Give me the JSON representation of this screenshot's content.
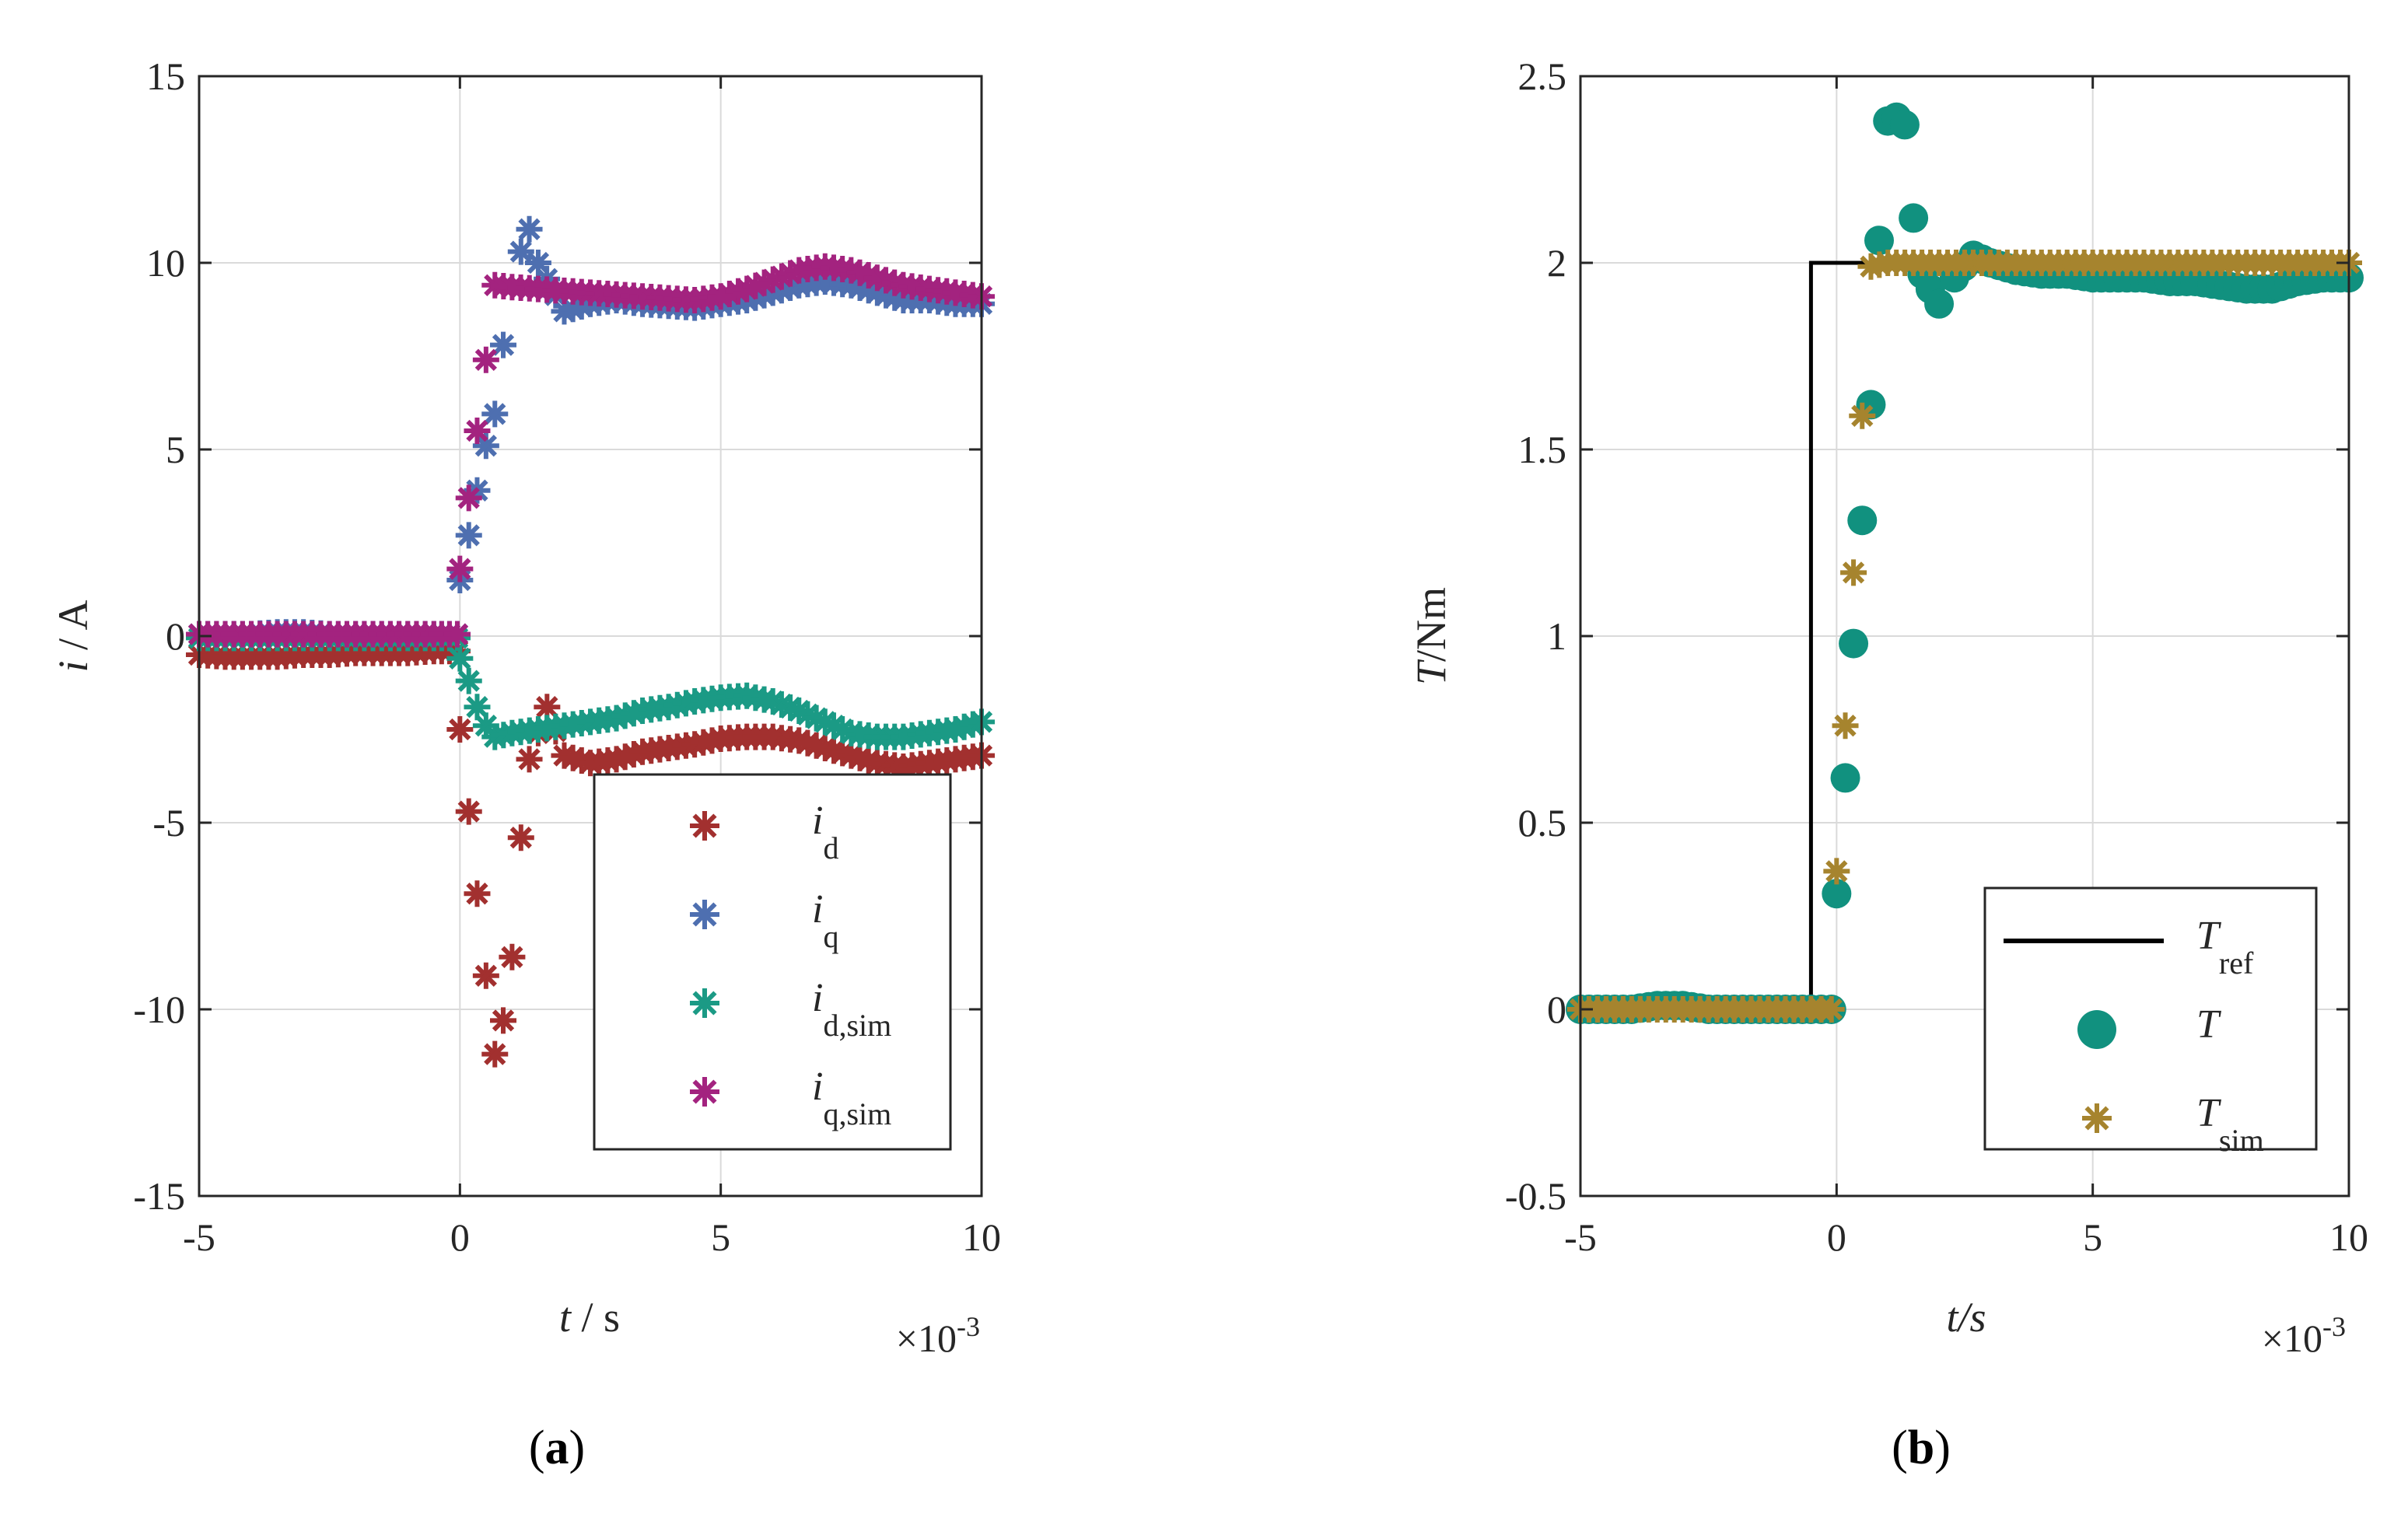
{
  "figure": {
    "caption_a": {
      "open": "(",
      "letter": "a",
      "close": ")"
    },
    "caption_b": {
      "open": "(",
      "letter": "b",
      "close": ")"
    }
  },
  "chart_data": [
    {
      "id": "a",
      "type": "scatter",
      "xlim": [
        -0.005,
        0.01
      ],
      "ylim": [
        -15,
        15
      ],
      "xticks": [
        -5,
        0,
        5,
        10
      ],
      "xtick_labels": [
        "-5",
        "0",
        "5",
        "10"
      ],
      "yticks": [
        15,
        10,
        5,
        0,
        -5,
        -10,
        -15
      ],
      "ytick_labels": [
        "15",
        "10",
        "5",
        "0",
        "-5",
        "-10",
        "-15"
      ],
      "x_exponent": {
        "base": "×10",
        "exp": "-3"
      },
      "xlabel": {
        "var": "t",
        "rest": " / s"
      },
      "ylabel": {
        "var": "i",
        "rest": " / A"
      },
      "grid": true,
      "legend_position": "bottom-right",
      "series": [
        {
          "name": "i_d",
          "legend_main": "i",
          "legend_sub": "d",
          "marker": "asterisk",
          "color": "#A2302F",
          "points": [
            [
              -5,
              -0.5
            ],
            [
              -4.5,
              -0.55
            ],
            [
              -4,
              -0.55
            ],
            [
              -3.5,
              -0.55
            ],
            [
              -3,
              -0.5
            ],
            [
              -2.5,
              -0.5
            ],
            [
              -2,
              -0.45
            ],
            [
              -1.5,
              -0.45
            ],
            [
              -1,
              -0.45
            ],
            [
              -0.5,
              -0.4
            ],
            [
              -0.05,
              -0.4
            ],
            [
              0,
              -2.5
            ],
            [
              0.17,
              -4.7
            ],
            [
              0.33,
              -6.9
            ],
            [
              0.5,
              -9.1
            ],
            [
              0.67,
              -11.2
            ],
            [
              0.83,
              -10.3
            ],
            [
              1.0,
              -8.6
            ],
            [
              1.17,
              -5.4
            ],
            [
              1.33,
              -3.3
            ],
            [
              1.67,
              -1.9
            ],
            [
              2.0,
              -3.2
            ],
            [
              2.5,
              -3.4
            ],
            [
              3,
              -3.3
            ],
            [
              3.5,
              -3.1
            ],
            [
              4,
              -3.0
            ],
            [
              4.5,
              -2.9
            ],
            [
              5,
              -2.75
            ],
            [
              5.5,
              -2.7
            ],
            [
              6,
              -2.7
            ],
            [
              6.5,
              -2.8
            ],
            [
              7,
              -3.0
            ],
            [
              7.5,
              -3.2
            ],
            [
              8,
              -3.4
            ],
            [
              8.5,
              -3.5
            ],
            [
              9,
              -3.4
            ],
            [
              9.5,
              -3.3
            ],
            [
              10,
              -3.2
            ]
          ]
        },
        {
          "name": "i_q",
          "legend_main": "i",
          "legend_sub": "q",
          "marker": "asterisk",
          "color": "#4E6FB0",
          "points": [
            [
              -5,
              0.05
            ],
            [
              -4.5,
              0.05
            ],
            [
              -4,
              0.05
            ],
            [
              -3.5,
              0.1
            ],
            [
              -3,
              0.1
            ],
            [
              -2.5,
              0.05
            ],
            [
              -2,
              0.05
            ],
            [
              -1.5,
              0.05
            ],
            [
              -1,
              0.05
            ],
            [
              -0.5,
              0.05
            ],
            [
              -0.05,
              0.05
            ],
            [
              0,
              1.5
            ],
            [
              0.17,
              2.7
            ],
            [
              0.33,
              3.9
            ],
            [
              0.5,
              5.1
            ],
            [
              0.67,
              5.95
            ],
            [
              0.83,
              7.8
            ],
            [
              1.17,
              10.3
            ],
            [
              1.33,
              10.9
            ],
            [
              1.5,
              10.0
            ],
            [
              2.0,
              8.7
            ],
            [
              2.5,
              8.9
            ],
            [
              3,
              9.0
            ],
            [
              3.5,
              8.9
            ],
            [
              4,
              8.85
            ],
            [
              4.5,
              8.8
            ],
            [
              5,
              8.9
            ],
            [
              5.5,
              9.0
            ],
            [
              6,
              9.2
            ],
            [
              6.5,
              9.4
            ],
            [
              7,
              9.5
            ],
            [
              7.5,
              9.4
            ],
            [
              8,
              9.2
            ],
            [
              8.5,
              9.0
            ],
            [
              9,
              9.0
            ],
            [
              9.5,
              8.9
            ],
            [
              10,
              8.9
            ]
          ]
        },
        {
          "name": "i_d,sim",
          "legend_main": "i",
          "legend_sub": "d,sim",
          "marker": "asterisk",
          "color": "#1B9A85",
          "points": [
            [
              -5,
              -0.05
            ],
            [
              -4.5,
              -0.05
            ],
            [
              -4,
              -0.05
            ],
            [
              -3.5,
              -0.05
            ],
            [
              -3,
              -0.05
            ],
            [
              -2.5,
              -0.05
            ],
            [
              -2,
              -0.05
            ],
            [
              -1.5,
              -0.05
            ],
            [
              -1,
              -0.05
            ],
            [
              -0.5,
              -0.05
            ],
            [
              -0.05,
              -0.05
            ],
            [
              0,
              -0.6
            ],
            [
              0.17,
              -1.2
            ],
            [
              0.33,
              -1.9
            ],
            [
              0.5,
              -2.4
            ],
            [
              0.67,
              -2.7
            ],
            [
              1,
              -2.6
            ],
            [
              1.5,
              -2.5
            ],
            [
              2,
              -2.4
            ],
            [
              2.5,
              -2.3
            ],
            [
              3,
              -2.2
            ],
            [
              3.5,
              -2.0
            ],
            [
              4,
              -1.9
            ],
            [
              4.5,
              -1.75
            ],
            [
              5,
              -1.65
            ],
            [
              5.5,
              -1.6
            ],
            [
              6,
              -1.75
            ],
            [
              6.5,
              -2.0
            ],
            [
              7,
              -2.3
            ],
            [
              7.5,
              -2.6
            ],
            [
              8,
              -2.7
            ],
            [
              8.5,
              -2.7
            ],
            [
              9,
              -2.6
            ],
            [
              9.5,
              -2.5
            ],
            [
              10,
              -2.3
            ]
          ]
        },
        {
          "name": "i_q,sim",
          "legend_main": "i",
          "legend_sub": "q,sim",
          "marker": "asterisk",
          "color": "#A3237F",
          "points": [
            [
              -5,
              0.05
            ],
            [
              -4.5,
              0.05
            ],
            [
              -4,
              0.05
            ],
            [
              -3.5,
              0.05
            ],
            [
              -3,
              0.05
            ],
            [
              -2.5,
              0.05
            ],
            [
              -2,
              0.05
            ],
            [
              -1.5,
              0.05
            ],
            [
              -1,
              0.05
            ],
            [
              -0.5,
              0.05
            ],
            [
              -0.05,
              0.05
            ],
            [
              0,
              1.8
            ],
            [
              0.17,
              3.7
            ],
            [
              0.33,
              5.5
            ],
            [
              0.5,
              7.4
            ],
            [
              0.67,
              9.4
            ],
            [
              1,
              9.35
            ],
            [
              1.5,
              9.3
            ],
            [
              2,
              9.25
            ],
            [
              2.5,
              9.2
            ],
            [
              3,
              9.15
            ],
            [
              3.5,
              9.1
            ],
            [
              4,
              9.05
            ],
            [
              4.5,
              9.0
            ],
            [
              5,
              9.1
            ],
            [
              5.5,
              9.3
            ],
            [
              6,
              9.55
            ],
            [
              6.5,
              9.8
            ],
            [
              7,
              9.9
            ],
            [
              7.5,
              9.8
            ],
            [
              8,
              9.6
            ],
            [
              8.5,
              9.4
            ],
            [
              9,
              9.3
            ],
            [
              9.5,
              9.2
            ],
            [
              10,
              9.1
            ]
          ]
        }
      ]
    },
    {
      "id": "b",
      "type": "scatter",
      "xlim": [
        -0.005,
        0.01
      ],
      "ylim": [
        -0.5,
        2.5
      ],
      "xticks": [
        -5,
        0,
        5,
        10
      ],
      "xtick_labels": [
        "-5",
        "0",
        "5",
        "10"
      ],
      "yticks": [
        2.5,
        2,
        1.5,
        1,
        0.5,
        0,
        -0.5
      ],
      "ytick_labels": [
        "2.5",
        "2",
        "1.5",
        "1",
        "0.5",
        "0",
        "-0.5"
      ],
      "x_exponent": {
        "base": "×10",
        "exp": "-3"
      },
      "xlabel": {
        "var": "t",
        "sep": "/",
        "unit": "s"
      },
      "ylabel": {
        "var": "T",
        "rest": "/Nm"
      },
      "grid": true,
      "legend_position": "bottom-right",
      "series": [
        {
          "name": "T_ref",
          "legend_main": "T",
          "legend_sub": "ref",
          "type": "line",
          "color": "#000000",
          "points": [
            [
              -5,
              0
            ],
            [
              -0.5,
              0
            ],
            [
              -0.5,
              2
            ],
            [
              10,
              2
            ]
          ]
        },
        {
          "name": "T",
          "legend_main": "T",
          "legend_sub": "",
          "marker": "circle",
          "color": "#11917F",
          "points": [
            [
              -5,
              0
            ],
            [
              -4.5,
              0
            ],
            [
              -4,
              0
            ],
            [
              -3.5,
              0.01
            ],
            [
              -3,
              0.01
            ],
            [
              -2.5,
              0
            ],
            [
              -2,
              0
            ],
            [
              -1.5,
              0
            ],
            [
              -1,
              0
            ],
            [
              -0.5,
              0
            ],
            [
              -0.1,
              0
            ],
            [
              0,
              0.31
            ],
            [
              0.17,
              0.62
            ],
            [
              0.33,
              0.98
            ],
            [
              0.5,
              1.31
            ],
            [
              0.67,
              1.62
            ],
            [
              0.83,
              2.06
            ],
            [
              1.0,
              2.38
            ],
            [
              1.17,
              2.39
            ],
            [
              1.33,
              2.37
            ],
            [
              1.5,
              2.12
            ],
            [
              1.67,
              1.97
            ],
            [
              1.83,
              1.93
            ],
            [
              2.0,
              1.89
            ],
            [
              2.3,
              1.96
            ],
            [
              2.67,
              2.02
            ],
            [
              3,
              2.0
            ],
            [
              3.5,
              1.98
            ],
            [
              4,
              1.97
            ],
            [
              4.5,
              1.97
            ],
            [
              5,
              1.96
            ],
            [
              5.5,
              1.96
            ],
            [
              6,
              1.96
            ],
            [
              6.5,
              1.95
            ],
            [
              7,
              1.95
            ],
            [
              7.5,
              1.94
            ],
            [
              8,
              1.93
            ],
            [
              8.5,
              1.93
            ],
            [
              9,
              1.95
            ],
            [
              9.5,
              1.96
            ],
            [
              10,
              1.96
            ]
          ]
        },
        {
          "name": "T_sim",
          "legend_main": "T",
          "legend_sub": "sim",
          "marker": "asterisk",
          "color": "#A6842E",
          "points": [
            [
              -5,
              0
            ],
            [
              -4.5,
              0
            ],
            [
              -4,
              0
            ],
            [
              -3.5,
              0
            ],
            [
              -3,
              0
            ],
            [
              -2.5,
              0
            ],
            [
              -2,
              0
            ],
            [
              -1.5,
              0
            ],
            [
              -1,
              0
            ],
            [
              -0.5,
              0
            ],
            [
              -0.1,
              0
            ],
            [
              0,
              0.37
            ],
            [
              0.17,
              0.76
            ],
            [
              0.33,
              1.17
            ],
            [
              0.5,
              1.59
            ],
            [
              0.67,
              1.99
            ],
            [
              1,
              2.0
            ],
            [
              1.5,
              2.0
            ],
            [
              2,
              2.0
            ],
            [
              2.5,
              2.0
            ],
            [
              3,
              2.0
            ],
            [
              3.5,
              2.0
            ],
            [
              4,
              2.0
            ],
            [
              4.5,
              2.0
            ],
            [
              5,
              2.0
            ],
            [
              5.5,
              2.0
            ],
            [
              6,
              2.0
            ],
            [
              6.5,
              2.0
            ],
            [
              7,
              2.0
            ],
            [
              7.5,
              2.0
            ],
            [
              8,
              2.0
            ],
            [
              8.5,
              2.0
            ],
            [
              9,
              2.0
            ],
            [
              9.5,
              2.0
            ],
            [
              10,
              2.0
            ]
          ]
        }
      ]
    }
  ]
}
